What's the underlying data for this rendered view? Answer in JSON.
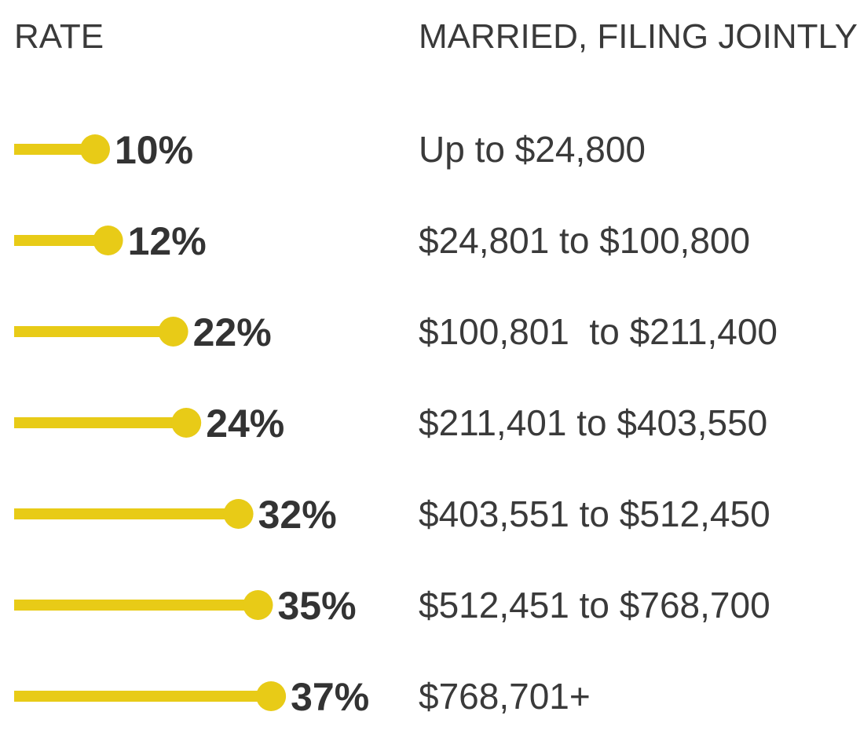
{
  "headers": {
    "rate": "RATE",
    "filing": "MARRIED, FILING JOINTLY"
  },
  "colors": {
    "bar": "#E8CB17",
    "text": "#333333"
  },
  "chart_data": {
    "type": "bar",
    "orientation": "horizontal",
    "categories": [
      "10%",
      "12%",
      "22%",
      "24%",
      "32%",
      "35%",
      "37%"
    ],
    "values": [
      10,
      12,
      22,
      24,
      32,
      35,
      37
    ],
    "ranges": [
      "Up to $24,800",
      "$24,801 to $100,800",
      "$100,801  to $211,400",
      "$211,401 to $403,550",
      "$403,551 to $512,450",
      "$512,451 to $768,700",
      "$768,701+"
    ],
    "xlim": [
      0,
      37
    ],
    "grid": false
  }
}
